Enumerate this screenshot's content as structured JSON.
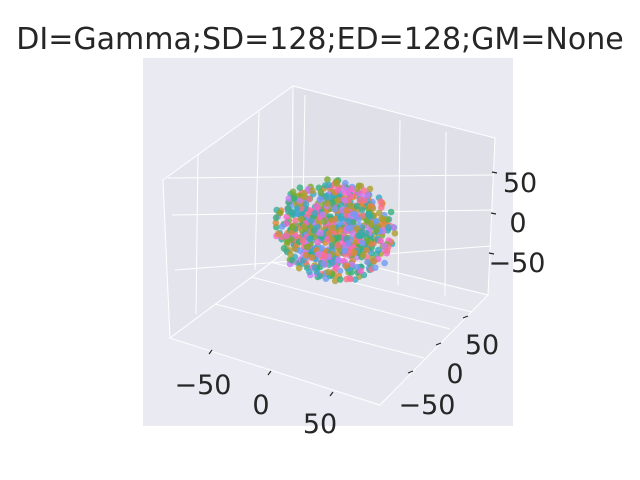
{
  "chart_data": {
    "type": "scatter",
    "projection": "3d",
    "title": "DI=Gamma;SD=128;ED=128;GM=None",
    "x_ticks": [
      "−50",
      "0",
      "50"
    ],
    "y_ticks": [
      "50",
      "0",
      "−50"
    ],
    "z_ticks": [
      "50",
      "0",
      "−50"
    ],
    "xlim": [
      -80,
      80
    ],
    "ylim": [
      -80,
      80
    ],
    "zlim": [
      -80,
      80
    ],
    "grid": true,
    "legend": "none",
    "point_count": 800,
    "point_radius_data": 55,
    "colors": [
      "#f77189",
      "#dc8932",
      "#ae9d31",
      "#77ab31",
      "#33b07a",
      "#36ada4",
      "#38a9c5",
      "#6e9bf4",
      "#cc7af4",
      "#f565cc"
    ]
  }
}
